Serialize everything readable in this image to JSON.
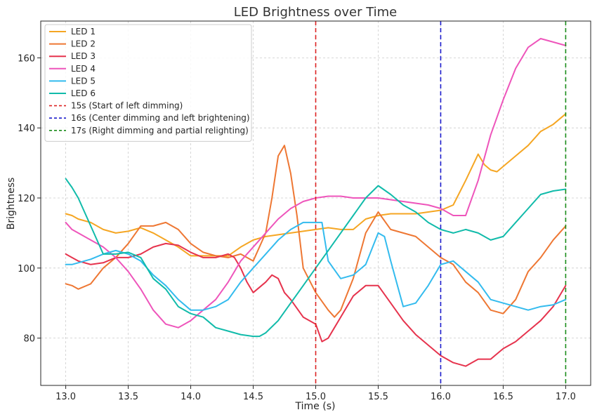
{
  "chart_data": {
    "type": "line",
    "title": "LED Brightness over Time",
    "xlabel": "Time (s)",
    "ylabel": "Brightness",
    "xlim": [
      12.8,
      17.2
    ],
    "ylim": [
      66.5,
      170.5
    ],
    "xticks": [
      13.0,
      13.5,
      14.0,
      14.5,
      15.0,
      15.5,
      16.0,
      16.5,
      17.0
    ],
    "xtick_labels": [
      "13.0",
      "13.5",
      "14.0",
      "14.5",
      "15.0",
      "15.5",
      "16.0",
      "16.5",
      "17.0"
    ],
    "yticks": [
      80,
      100,
      120,
      140,
      160
    ],
    "ytick_labels": [
      "80",
      "100",
      "120",
      "140",
      "160"
    ],
    "grid": true,
    "legend_position": "top-left",
    "series": [
      {
        "name": "LED 1",
        "color": "#f5a623",
        "x": [
          13.0,
          13.05,
          13.1,
          13.2,
          13.3,
          13.4,
          13.5,
          13.6,
          13.7,
          13.8,
          13.9,
          14.0,
          14.1,
          14.2,
          14.3,
          14.4,
          14.5,
          14.6,
          14.7,
          14.8,
          14.9,
          15.0,
          15.1,
          15.2,
          15.3,
          15.4,
          15.5,
          15.6,
          15.7,
          15.8,
          15.9,
          16.0,
          16.1,
          16.2,
          16.3,
          16.35,
          16.4,
          16.45,
          16.5,
          16.6,
          16.7,
          16.8,
          16.9,
          17.0
        ],
        "y": [
          115.5,
          115,
          114,
          113,
          111,
          110,
          110.5,
          111.5,
          110,
          108,
          106,
          103.5,
          103.5,
          103.5,
          103.5,
          106,
          108,
          109,
          109.5,
          110,
          110.5,
          111,
          111.5,
          111,
          111,
          114,
          115,
          115.5,
          115.5,
          115.5,
          116,
          116.5,
          118,
          125,
          132.5,
          129.5,
          128,
          127.5,
          129,
          132,
          135,
          139,
          141,
          144
        ]
      },
      {
        "name": "LED 2",
        "color": "#ee7733",
        "x": [
          13.0,
          13.05,
          13.1,
          13.2,
          13.3,
          13.4,
          13.5,
          13.6,
          13.7,
          13.8,
          13.9,
          14.0,
          14.1,
          14.2,
          14.3,
          14.4,
          14.5,
          14.6,
          14.65,
          14.7,
          14.75,
          14.8,
          14.85,
          14.9,
          15.0,
          15.1,
          15.15,
          15.2,
          15.3,
          15.4,
          15.5,
          15.6,
          15.7,
          15.8,
          15.9,
          16.0,
          16.1,
          16.2,
          16.3,
          16.4,
          16.5,
          16.6,
          16.7,
          16.8,
          16.9,
          17.0
        ],
        "y": [
          95.5,
          95,
          94,
          95.5,
          100,
          103,
          107,
          112,
          112,
          113,
          111,
          107,
          104.5,
          103.5,
          103,
          104,
          102,
          110,
          120,
          132,
          135,
          127,
          115,
          100,
          93,
          88,
          86,
          88,
          97,
          110,
          116,
          111,
          110,
          109,
          106,
          103,
          101,
          96,
          93,
          88,
          87,
          91,
          99,
          103,
          108,
          112
        ]
      },
      {
        "name": "LED 3",
        "color": "#e6334d",
        "x": [
          13.0,
          13.05,
          13.1,
          13.2,
          13.3,
          13.4,
          13.5,
          13.6,
          13.7,
          13.8,
          13.9,
          14.0,
          14.1,
          14.2,
          14.3,
          14.35,
          14.4,
          14.45,
          14.5,
          14.6,
          14.65,
          14.7,
          14.75,
          14.8,
          14.9,
          14.95,
          15.0,
          15.05,
          15.1,
          15.15,
          15.2,
          15.3,
          15.4,
          15.5,
          15.6,
          15.7,
          15.8,
          15.9,
          16.0,
          16.1,
          16.2,
          16.3,
          16.4,
          16.5,
          16.6,
          16.7,
          16.8,
          16.9,
          17.0
        ],
        "y": [
          104,
          103,
          102,
          101,
          101.5,
          103,
          103,
          104,
          106,
          107,
          106.5,
          104.5,
          103,
          103,
          104,
          103,
          100,
          96,
          93,
          96,
          98,
          97,
          93,
          91,
          86,
          85,
          84,
          79,
          80,
          83,
          86,
          92,
          95,
          95,
          90,
          85,
          81,
          78,
          75,
          73,
          72,
          74,
          74,
          77,
          79,
          82,
          85,
          89,
          95
        ]
      },
      {
        "name": "LED 4",
        "color": "#ee55bb",
        "x": [
          13.0,
          13.05,
          13.1,
          13.2,
          13.3,
          13.4,
          13.5,
          13.6,
          13.7,
          13.8,
          13.9,
          14.0,
          14.1,
          14.2,
          14.3,
          14.4,
          14.5,
          14.6,
          14.7,
          14.8,
          14.9,
          15.0,
          15.1,
          15.2,
          15.3,
          15.4,
          15.5,
          15.6,
          15.7,
          15.8,
          15.9,
          16.0,
          16.1,
          16.2,
          16.3,
          16.4,
          16.5,
          16.6,
          16.7,
          16.8,
          16.9,
          17.0
        ],
        "y": [
          113,
          111,
          110,
          108,
          106,
          103,
          99,
          94,
          88,
          84,
          83,
          85,
          88,
          91,
          96,
          102,
          106,
          110,
          114,
          117,
          119,
          120,
          120.5,
          120.5,
          120,
          120,
          120,
          119.5,
          119,
          118.5,
          118,
          117,
          115,
          115,
          125,
          138,
          148,
          157,
          163,
          165.5,
          164.5,
          163.5
        ]
      },
      {
        "name": "LED 5",
        "color": "#33bbee",
        "x": [
          13.0,
          13.05,
          13.1,
          13.2,
          13.3,
          13.4,
          13.5,
          13.6,
          13.7,
          13.8,
          13.9,
          14.0,
          14.1,
          14.2,
          14.3,
          14.4,
          14.5,
          14.6,
          14.7,
          14.8,
          14.9,
          15.0,
          15.05,
          15.1,
          15.2,
          15.3,
          15.4,
          15.5,
          15.55,
          15.6,
          15.7,
          15.8,
          15.9,
          16.0,
          16.1,
          16.2,
          16.3,
          16.4,
          16.5,
          16.6,
          16.7,
          16.8,
          16.9,
          17.0
        ],
        "y": [
          101,
          101,
          101.5,
          102.5,
          104,
          105,
          104,
          102,
          98,
          95,
          91,
          88,
          88,
          89,
          91,
          96,
          100,
          104,
          108,
          111,
          113,
          113,
          113,
          102,
          97,
          98,
          101,
          110,
          109,
          102,
          89,
          90,
          95,
          101,
          102,
          99,
          96,
          91,
          90,
          89,
          88,
          89,
          89.5,
          91
        ]
      },
      {
        "name": "LED 6",
        "color": "#11bbaa",
        "x": [
          13.0,
          13.05,
          13.1,
          13.2,
          13.3,
          13.4,
          13.5,
          13.6,
          13.7,
          13.8,
          13.9,
          14.0,
          14.1,
          14.2,
          14.3,
          14.4,
          14.5,
          14.55,
          14.6,
          14.7,
          14.8,
          14.9,
          15.0,
          15.1,
          15.2,
          15.3,
          15.4,
          15.5,
          15.6,
          15.7,
          15.8,
          15.9,
          16.0,
          16.1,
          16.2,
          16.3,
          16.4,
          16.5,
          16.6,
          16.7,
          16.8,
          16.9,
          17.0
        ],
        "y": [
          125.5,
          123,
          120,
          112,
          104,
          104,
          104.5,
          103,
          97,
          94,
          89,
          87,
          86,
          83,
          82,
          81,
          80.5,
          80.5,
          81.5,
          85,
          90,
          95,
          100,
          105,
          110,
          115,
          120,
          123.5,
          121,
          118,
          116,
          113,
          111,
          110,
          111,
          110,
          108,
          109,
          113,
          117,
          121,
          122,
          122.5
        ]
      }
    ],
    "vlines": [
      {
        "x": 15,
        "label": "15s (Start of left dimming)",
        "color": "#dd2222"
      },
      {
        "x": 16,
        "label": "16s (Center dimming and left brightening)",
        "color": "#1a1acc"
      },
      {
        "x": 17,
        "label": "17s (Right dimming and partial relighting)",
        "color": "#1a8c1a"
      }
    ]
  }
}
